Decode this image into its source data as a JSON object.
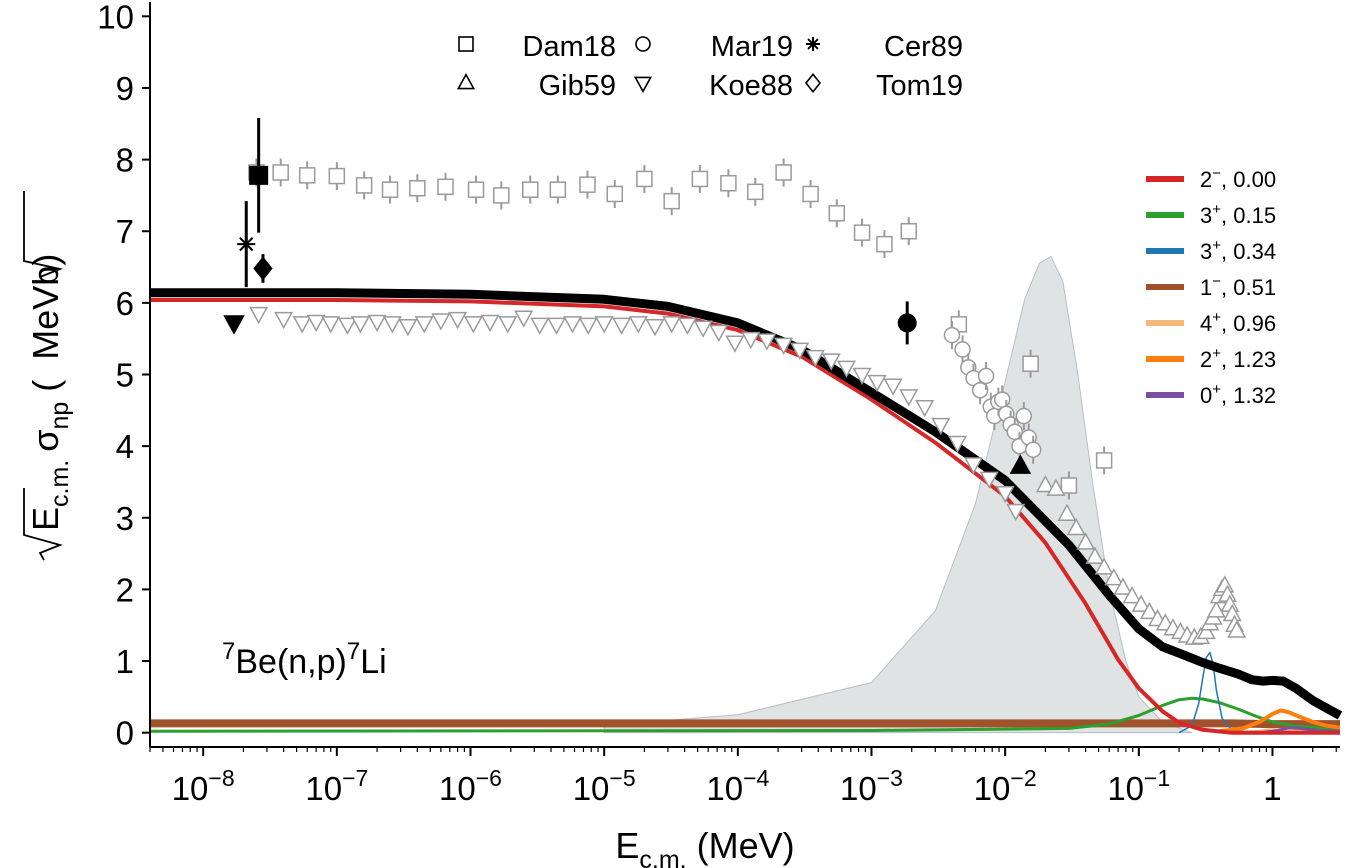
{
  "chart_data": {
    "type": "scatter",
    "x_scale": "log",
    "xlim": [
      4e-09,
      3.2
    ],
    "ylim": [
      -0.2,
      10.2
    ],
    "grid": false,
    "xlabel": "E",
    "xlabel_sub": "c.m.",
    "xlabel_unit": "(MeV)",
    "ylabel_main": "E",
    "ylabel_sub1": "c.m.",
    "ylabel_sigma": "σ",
    "ylabel_sub2": "np",
    "ylabel_unit_pre": "(",
    "ylabel_unit_rad": "MeV",
    "ylabel_unit_post": "b)",
    "reaction": {
      "sup1": "7",
      "mid": "Be(n,p)",
      "sup2": "7",
      "end": "Li"
    },
    "x_ticks": [
      {
        "x": 1e-08,
        "base": "10",
        "exp": "−8"
      },
      {
        "x": 1e-07,
        "base": "10",
        "exp": "−7"
      },
      {
        "x": 1e-06,
        "base": "10",
        "exp": "−6"
      },
      {
        "x": 1e-05,
        "base": "10",
        "exp": "−5"
      },
      {
        "x": 0.0001,
        "base": "10",
        "exp": "−4"
      },
      {
        "x": 0.001,
        "base": "10",
        "exp": "−3"
      },
      {
        "x": 0.01,
        "base": "10",
        "exp": "−2"
      },
      {
        "x": 0.1,
        "base": "10",
        "exp": "−1"
      },
      {
        "x": 1,
        "base": "1",
        "exp": ""
      }
    ],
    "y_ticks": [
      "0",
      "1",
      "2",
      "3",
      "4",
      "5",
      "6",
      "7",
      "8",
      "9",
      "10"
    ],
    "legend_data": [
      {
        "label": "Dam18",
        "marker": "square"
      },
      {
        "label": "Mar19",
        "marker": "circle"
      },
      {
        "label": "Cer89",
        "marker": "asterisk"
      },
      {
        "label": "Gib59",
        "marker": "triangle-up"
      },
      {
        "label": "Koe88",
        "marker": "triangle-down"
      },
      {
        "label": "Tom19",
        "marker": "diamond"
      }
    ],
    "legend_data_position": "top-center",
    "legend_states_position": "right",
    "states": [
      {
        "jpi": "2",
        "sign": "−",
        "energy": ", 0.00",
        "color": "#d62728"
      },
      {
        "jpi": "3",
        "sign": "+",
        "energy": ", 0.15",
        "color": "#2ca02c"
      },
      {
        "jpi": "3",
        "sign": "+",
        "energy": ", 0.34",
        "color": "#1f77b4"
      },
      {
        "jpi": "1",
        "sign": "−",
        "energy": ", 0.51",
        "color": "#a0522d"
      },
      {
        "jpi": "4",
        "sign": "+",
        "energy": ", 0.96",
        "color": "#f5b97a"
      },
      {
        "jpi": "2",
        "sign": "+",
        "energy": ", 1.23",
        "color": "#ff7f0e"
      },
      {
        "jpi": "0",
        "sign": "+",
        "energy": ", 1.32",
        "color": "#7b4ea3"
      }
    ],
    "series": [
      {
        "name": "Dam18",
        "marker": "square",
        "points": [
          [
            2.5e-08,
            7.82
          ],
          [
            3.8e-08,
            7.82
          ],
          [
            6e-08,
            7.78
          ],
          [
            1e-07,
            7.77
          ],
          [
            1.6e-07,
            7.64
          ],
          [
            2.5e-07,
            7.58
          ],
          [
            4e-07,
            7.6
          ],
          [
            6.5e-07,
            7.62
          ],
          [
            1.1e-06,
            7.58
          ],
          [
            1.7e-06,
            7.5
          ],
          [
            2.8e-06,
            7.58
          ],
          [
            4.5e-06,
            7.58
          ],
          [
            7.5e-06,
            7.65
          ],
          [
            1.2e-05,
            7.52
          ],
          [
            2e-05,
            7.73
          ],
          [
            3.2e-05,
            7.42
          ],
          [
            5.2e-05,
            7.73
          ],
          [
            8.5e-05,
            7.67
          ],
          [
            0.000135,
            7.55
          ],
          [
            0.00022,
            7.82
          ],
          [
            0.00035,
            7.52
          ],
          [
            0.00055,
            7.25
          ],
          [
            0.00085,
            6.98
          ],
          [
            0.00125,
            6.82
          ],
          [
            0.0019,
            7.0
          ],
          [
            0.0045,
            5.7
          ],
          [
            0.0155,
            5.15
          ],
          [
            0.03,
            3.45
          ],
          [
            0.055,
            3.8
          ]
        ]
      },
      {
        "name": "Mar19",
        "marker": "circle",
        "points": [
          [
            0.004,
            5.55
          ],
          [
            0.0048,
            5.35
          ],
          [
            0.0053,
            5.1
          ],
          [
            0.0058,
            4.95
          ],
          [
            0.0065,
            4.78
          ],
          [
            0.0072,
            4.98
          ],
          [
            0.0078,
            4.55
          ],
          [
            0.0083,
            4.42
          ],
          [
            0.0089,
            4.62
          ],
          [
            0.0095,
            4.65
          ],
          [
            0.0102,
            4.45
          ],
          [
            0.011,
            4.3
          ],
          [
            0.0118,
            4.2
          ],
          [
            0.0128,
            4.0
          ],
          [
            0.0138,
            4.42
          ],
          [
            0.015,
            4.12
          ],
          [
            0.0162,
            3.95
          ]
        ]
      },
      {
        "name": "Gib59",
        "marker": "triangle-up",
        "points": [
          [
            0.02,
            3.45
          ],
          [
            0.024,
            3.4
          ],
          [
            0.029,
            3.05
          ],
          [
            0.034,
            2.85
          ],
          [
            0.04,
            2.65
          ],
          [
            0.047,
            2.45
          ],
          [
            0.055,
            2.3
          ],
          [
            0.065,
            2.15
          ],
          [
            0.076,
            2.02
          ],
          [
            0.089,
            1.9
          ],
          [
            0.104,
            1.78
          ],
          [
            0.12,
            1.68
          ],
          [
            0.138,
            1.58
          ],
          [
            0.158,
            1.52
          ],
          [
            0.18,
            1.45
          ],
          [
            0.205,
            1.4
          ],
          [
            0.23,
            1.35
          ],
          [
            0.26,
            1.32
          ],
          [
            0.29,
            1.33
          ],
          [
            0.32,
            1.4
          ],
          [
            0.34,
            1.52
          ],
          [
            0.36,
            1.6
          ],
          [
            0.38,
            1.7
          ],
          [
            0.4,
            1.9
          ],
          [
            0.42,
            2.0
          ],
          [
            0.44,
            2.05
          ],
          [
            0.46,
            1.92
          ],
          [
            0.48,
            1.78
          ],
          [
            0.5,
            1.65
          ],
          [
            0.52,
            1.5
          ],
          [
            0.54,
            1.42
          ]
        ]
      },
      {
        "name": "Koe88",
        "marker": "triangle-down",
        "points": [
          [
            2.6e-08,
            5.85
          ],
          [
            4e-08,
            5.78
          ],
          [
            5.5e-08,
            5.72
          ],
          [
            7e-08,
            5.74
          ],
          [
            9e-08,
            5.72
          ],
          [
            1.2e-07,
            5.7
          ],
          [
            1.5e-07,
            5.72
          ],
          [
            2e-07,
            5.74
          ],
          [
            2.6e-07,
            5.72
          ],
          [
            3.4e-07,
            5.68
          ],
          [
            4.5e-07,
            5.72
          ],
          [
            6e-07,
            5.76
          ],
          [
            8e-07,
            5.78
          ],
          [
            1.05e-06,
            5.72
          ],
          [
            1.4e-06,
            5.74
          ],
          [
            1.9e-06,
            5.72
          ],
          [
            2.5e-06,
            5.8
          ],
          [
            3.3e-06,
            5.7
          ],
          [
            4.4e-06,
            5.7
          ],
          [
            5.8e-06,
            5.72
          ],
          [
            7.6e-06,
            5.7
          ],
          [
            1e-05,
            5.72
          ],
          [
            1.35e-05,
            5.7
          ],
          [
            1.8e-05,
            5.72
          ],
          [
            2.4e-05,
            5.68
          ],
          [
            3.2e-05,
            5.72
          ],
          [
            4.2e-05,
            5.7
          ],
          [
            5.5e-05,
            5.66
          ],
          [
            7.2e-05,
            5.6
          ],
          [
            9.5e-05,
            5.45
          ],
          [
            0.000125,
            5.5
          ],
          [
            0.000165,
            5.48
          ],
          [
            0.00022,
            5.42
          ],
          [
            0.00029,
            5.35
          ],
          [
            0.00038,
            5.25
          ],
          [
            0.0005,
            5.2
          ],
          [
            0.00065,
            5.1
          ],
          [
            0.00085,
            5.0
          ],
          [
            0.0011,
            4.9
          ],
          [
            0.00145,
            4.85
          ],
          [
            0.0019,
            4.7
          ],
          [
            0.0025,
            4.55
          ],
          [
            0.0033,
            4.3
          ],
          [
            0.0044,
            4.05
          ],
          [
            0.0058,
            3.75
          ],
          [
            0.0076,
            3.55
          ],
          [
            0.01,
            3.35
          ],
          [
            0.012,
            3.1
          ]
        ]
      }
    ],
    "highlighted_points": [
      {
        "name": "Dam18",
        "marker": "square",
        "x": 2.6e-08,
        "y": 7.78,
        "err": 0.8
      },
      {
        "name": "Cer89",
        "marker": "asterisk",
        "x": 2.1e-08,
        "y": 6.82,
        "err": 0.6
      },
      {
        "name": "Tom19",
        "marker": "diamond",
        "x": 2.8e-08,
        "y": 6.48,
        "err": 0.2
      },
      {
        "name": "Koe88",
        "marker": "triangle-down",
        "x": 1.7e-08,
        "y": 5.72,
        "err": 0
      },
      {
        "name": "Mar19",
        "marker": "circle",
        "x": 0.00185,
        "y": 5.72,
        "err": 0.3
      },
      {
        "name": "Gib59",
        "marker": "triangle-up",
        "x": 0.013,
        "y": 3.72,
        "err": 0
      }
    ],
    "curves": [
      {
        "name": "total",
        "color": "#000000",
        "band": true,
        "points": [
          [
            4e-09,
            6.14
          ],
          [
            1e-07,
            6.14
          ],
          [
            1e-06,
            6.12
          ],
          [
            1e-05,
            6.05
          ],
          [
            3e-05,
            5.95
          ],
          [
            0.0001,
            5.72
          ],
          [
            0.0003,
            5.35
          ],
          [
            0.001,
            4.75
          ],
          [
            0.003,
            4.2
          ],
          [
            0.01,
            3.52
          ],
          [
            0.03,
            2.62
          ],
          [
            0.06,
            1.92
          ],
          [
            0.1,
            1.45
          ],
          [
            0.15,
            1.2
          ],
          [
            0.22,
            1.08
          ],
          [
            0.3,
            0.98
          ],
          [
            0.4,
            0.9
          ],
          [
            0.55,
            0.82
          ],
          [
            0.7,
            0.74
          ],
          [
            0.85,
            0.72
          ],
          [
            1.0,
            0.73
          ],
          [
            1.2,
            0.72
          ],
          [
            1.5,
            0.62
          ],
          [
            2.0,
            0.45
          ],
          [
            3.2,
            0.24
          ]
        ]
      },
      {
        "name": "2−, 0.00",
        "color": "#d62728",
        "points": [
          [
            4e-09,
            6.04
          ],
          [
            1e-07,
            6.04
          ],
          [
            1e-06,
            6.02
          ],
          [
            1e-05,
            5.95
          ],
          [
            3e-05,
            5.85
          ],
          [
            0.0001,
            5.62
          ],
          [
            0.0003,
            5.25
          ],
          [
            0.001,
            4.65
          ],
          [
            0.003,
            4.05
          ],
          [
            0.01,
            3.3
          ],
          [
            0.02,
            2.65
          ],
          [
            0.04,
            1.8
          ],
          [
            0.07,
            1.02
          ],
          [
            0.1,
            0.62
          ],
          [
            0.15,
            0.3
          ],
          [
            0.2,
            0.14
          ],
          [
            0.3,
            0.04
          ],
          [
            0.5,
            0.0
          ],
          [
            3.2,
            0.0
          ]
        ]
      },
      {
        "name": "3+, 0.15",
        "color": "#2ca02c",
        "points": [
          [
            4e-09,
            0.02
          ],
          [
            0.001,
            0.03
          ],
          [
            0.03,
            0.06
          ],
          [
            0.06,
            0.12
          ],
          [
            0.1,
            0.24
          ],
          [
            0.15,
            0.38
          ],
          [
            0.2,
            0.46
          ],
          [
            0.25,
            0.48
          ],
          [
            0.3,
            0.47
          ],
          [
            0.4,
            0.42
          ],
          [
            0.55,
            0.33
          ],
          [
            0.75,
            0.23
          ],
          [
            1.0,
            0.15
          ],
          [
            1.5,
            0.09
          ],
          [
            3.2,
            0.05
          ]
        ]
      },
      {
        "name": "3+, 0.34",
        "color": "#1f77b4",
        "points": [
          [
            0.2,
            0.0
          ],
          [
            0.25,
            0.1
          ],
          [
            0.28,
            0.4
          ],
          [
            0.3,
            0.75
          ],
          [
            0.32,
            1.05
          ],
          [
            0.34,
            1.12
          ],
          [
            0.36,
            0.95
          ],
          [
            0.38,
            0.6
          ],
          [
            0.42,
            0.2
          ],
          [
            0.5,
            0.03
          ],
          [
            0.7,
            0.0
          ],
          [
            3.2,
            0.0
          ]
        ]
      },
      {
        "name": "1−, 0.51",
        "color": "#a0522d",
        "points": [
          [
            4e-09,
            0.13
          ],
          [
            0.001,
            0.13
          ],
          [
            0.1,
            0.13
          ],
          [
            0.5,
            0.13
          ],
          [
            1.0,
            0.12
          ],
          [
            3.2,
            0.12
          ]
        ]
      },
      {
        "name": "4+, 0.96",
        "color": "#f5b97a",
        "points": [
          [
            0.5,
            0.0
          ],
          [
            0.8,
            0.02
          ],
          [
            0.96,
            0.04
          ],
          [
            1.2,
            0.03
          ],
          [
            3.2,
            0.01
          ]
        ]
      },
      {
        "name": "2+, 1.23",
        "color": "#ff7f0e",
        "points": [
          [
            0.4,
            0.02
          ],
          [
            0.6,
            0.06
          ],
          [
            0.8,
            0.15
          ],
          [
            1.0,
            0.26
          ],
          [
            1.15,
            0.31
          ],
          [
            1.3,
            0.29
          ],
          [
            1.6,
            0.22
          ],
          [
            2.0,
            0.15
          ],
          [
            2.5,
            0.1
          ],
          [
            3.2,
            0.07
          ]
        ]
      },
      {
        "name": "0+, 1.32",
        "color": "#7b4ea3",
        "points": [
          [
            0.8,
            0.0
          ],
          [
            1.1,
            0.03
          ],
          [
            1.32,
            0.07
          ],
          [
            1.6,
            0.06
          ],
          [
            2.2,
            0.03
          ],
          [
            3.2,
            0.02
          ]
        ]
      }
    ],
    "shaded_region": {
      "color": "#dfe3e4",
      "points": [
        [
          1e-05,
          0.1
        ],
        [
          0.0001,
          0.25
        ],
        [
          0.001,
          0.7
        ],
        [
          0.003,
          1.7
        ],
        [
          0.006,
          3.2
        ],
        [
          0.01,
          4.9
        ],
        [
          0.014,
          6.05
        ],
        [
          0.018,
          6.55
        ],
        [
          0.022,
          6.65
        ],
        [
          0.027,
          6.3
        ],
        [
          0.035,
          5.0
        ],
        [
          0.045,
          3.5
        ],
        [
          0.06,
          2.0
        ],
        [
          0.08,
          1.0
        ],
        [
          0.1,
          0.5
        ],
        [
          0.15,
          0.15
        ],
        [
          0.25,
          0.0
        ]
      ]
    }
  }
}
